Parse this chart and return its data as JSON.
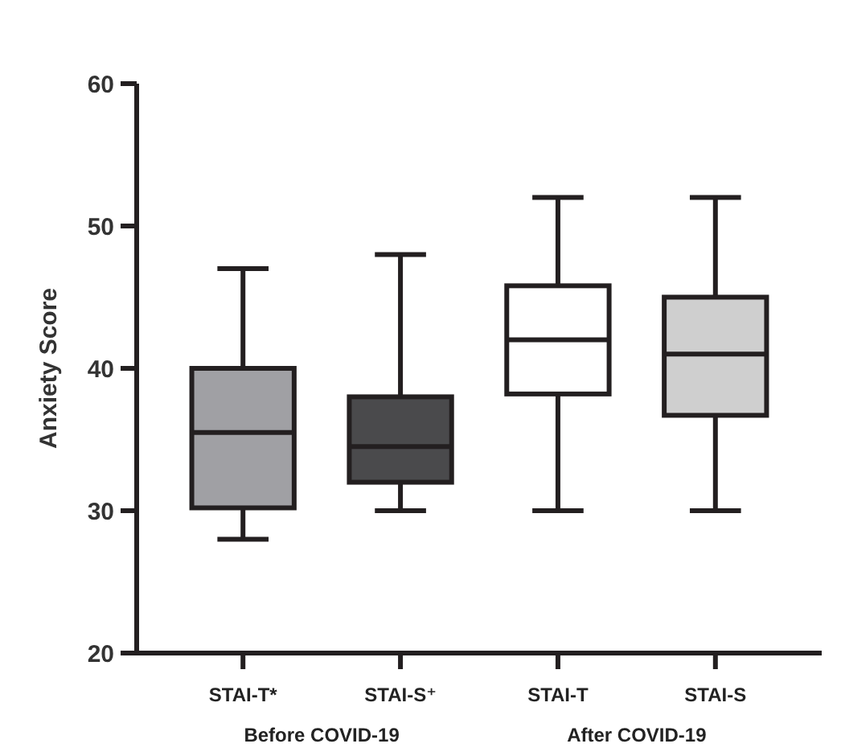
{
  "chart_data": {
    "type": "box",
    "ylabel": "Anxiety Score",
    "categories": [
      "STAI-T*",
      "STAI-S⁺",
      "STAI-T",
      "STAI-S"
    ],
    "colors": [
      "#a0a0a4",
      "#4a4a4c",
      "#ffffff",
      "#cfcfcf"
    ],
    "boxes": [
      {
        "low": 28,
        "q1": 30.2,
        "median": 35.5,
        "q3": 40,
        "high": 47
      },
      {
        "low": 30,
        "q1": 32,
        "median": 34.5,
        "q3": 38,
        "high": 48
      },
      {
        "low": 30,
        "q1": 38.2,
        "median": 42,
        "q3": 45.8,
        "high": 52
      },
      {
        "low": 30,
        "q1": 36.7,
        "median": 41,
        "q3": 45,
        "high": 52
      }
    ],
    "annotations": [
      "Before COVID-19",
      "After COVID-19"
    ],
    "ylim": [
      20,
      60
    ],
    "yticks": [
      20,
      30,
      40,
      50,
      60
    ],
    "grid": false
  }
}
